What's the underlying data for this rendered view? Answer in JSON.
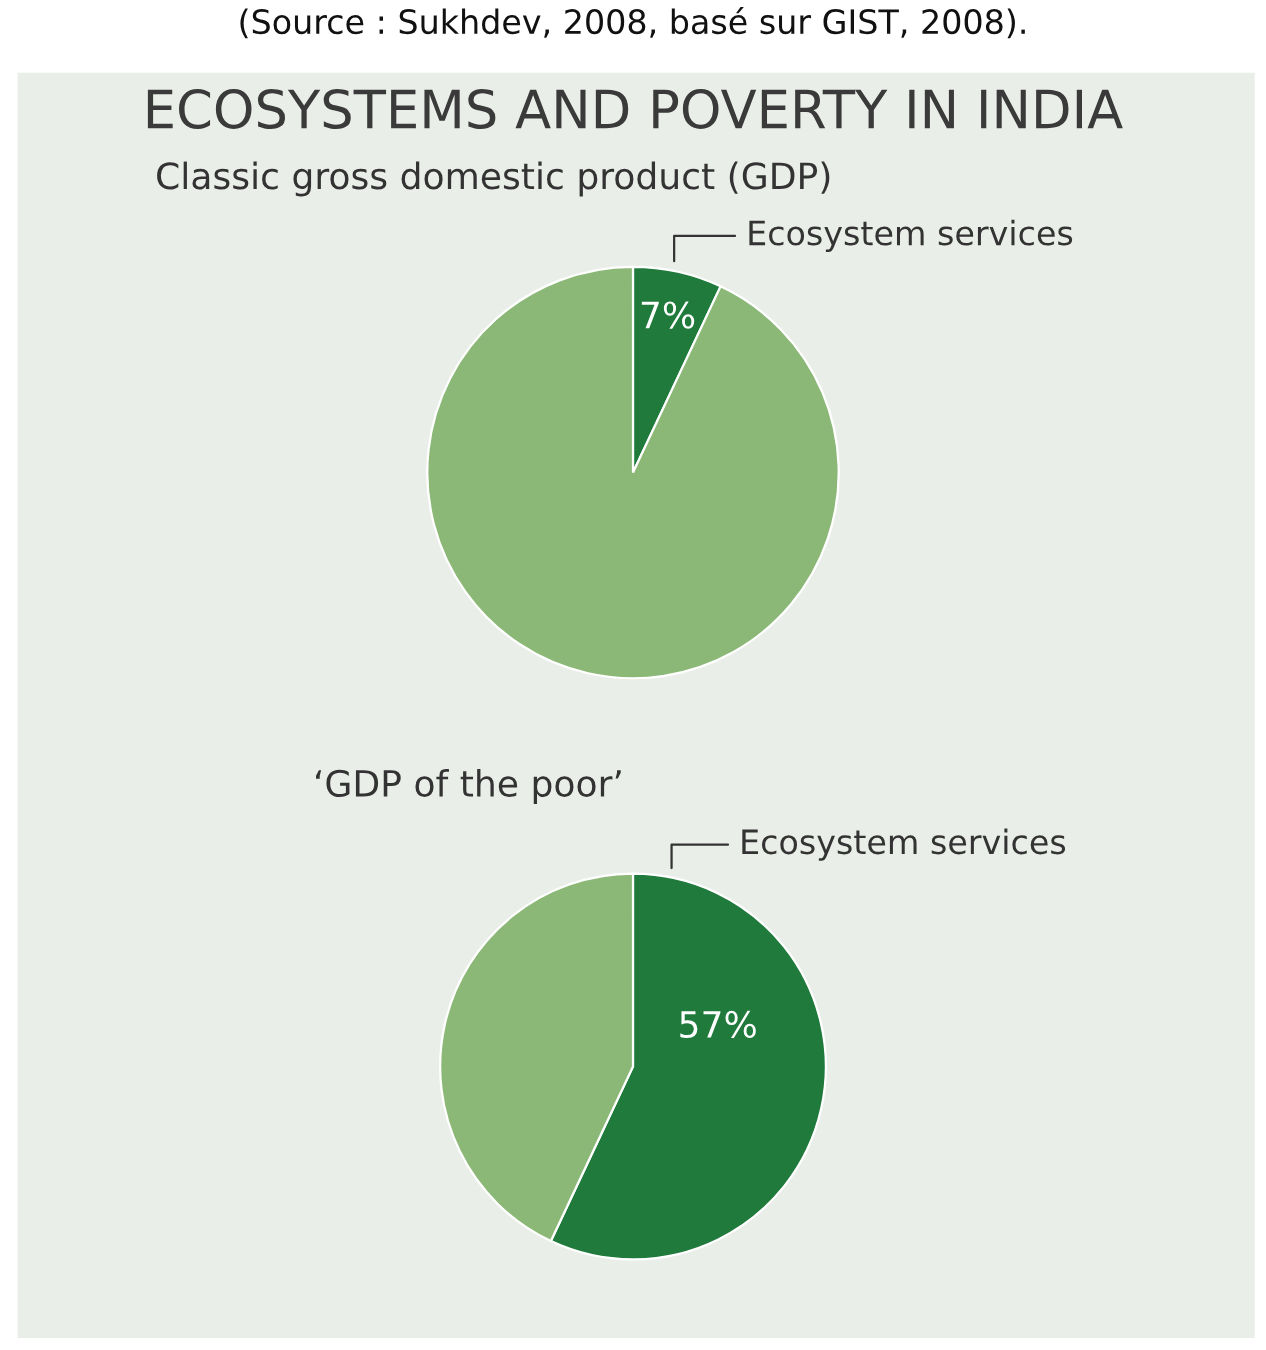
{
  "chart_data": [
    {
      "type": "pie",
      "title": "ECOSYSTEMS AND POVERTY IN INDIA",
      "subtitle": "Classic gross domestic product (GDP)",
      "categories": [
        "Ecosystem services",
        null
      ],
      "values": [
        7,
        93
      ],
      "colors": [
        "#1f7a3c",
        "#8cb877"
      ],
      "value_labels": [
        "7%",
        null
      ],
      "annotations": [
        "(Source : Sukhdev, 2008, basé sur GIST, 2008)."
      ]
    },
    {
      "type": "pie",
      "title": "‘GDP of the poor’",
      "categories": [
        "Ecosystem services",
        null
      ],
      "values": [
        57,
        43
      ],
      "colors": [
        "#1f7a3c",
        "#8cb877"
      ],
      "value_labels": [
        "57%",
        null
      ]
    }
  ]
}
